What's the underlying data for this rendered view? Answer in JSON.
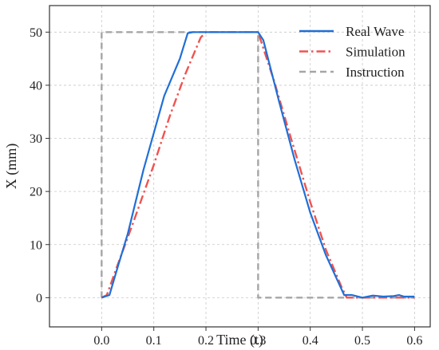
{
  "chart_data": {
    "type": "line",
    "title": "",
    "xlabel": "Time  (t)",
    "ylabel": "X  (mm)",
    "xlim": [
      -0.1,
      0.63
    ],
    "ylim": [
      -5.5,
      55
    ],
    "xticks": [
      0.0,
      0.1,
      0.2,
      0.3,
      0.4,
      0.5,
      0.6
    ],
    "xtick_labels": [
      "0.0",
      "0.1",
      "0.2",
      "0.3",
      "0.4",
      "0.5",
      "0.6"
    ],
    "yticks": [
      0,
      10,
      20,
      30,
      40,
      50
    ],
    "ytick_labels": [
      "0",
      "10",
      "20",
      "30",
      "40",
      "50"
    ],
    "grid": true,
    "legend_position": "top-right",
    "series": [
      {
        "name": "Real Wave",
        "color": "#1f6fd6",
        "style": "solid",
        "x": [
          0.0,
          0.015,
          0.03,
          0.05,
          0.08,
          0.1,
          0.12,
          0.15,
          0.165,
          0.175,
          0.2,
          0.25,
          0.3,
          0.31,
          0.34,
          0.37,
          0.4,
          0.43,
          0.465,
          0.48,
          0.5,
          0.52,
          0.54,
          0.56,
          0.57,
          0.58,
          0.6
        ],
        "y": [
          0.0,
          0.5,
          5.5,
          12.0,
          24.0,
          31.0,
          38.0,
          45.0,
          49.8,
          50.0,
          50.0,
          50.0,
          50.0,
          48.5,
          37.0,
          26.0,
          16.0,
          8.0,
          0.5,
          0.5,
          0.0,
          0.4,
          0.2,
          0.3,
          0.5,
          0.2,
          0.2
        ]
      },
      {
        "name": "Simulation",
        "color": "#ef5350",
        "style": "dashdot",
        "x": [
          0.0,
          0.01,
          0.03,
          0.06,
          0.1,
          0.13,
          0.16,
          0.19,
          0.2,
          0.25,
          0.3,
          0.33,
          0.36,
          0.4,
          0.43,
          0.46,
          0.47,
          0.5,
          0.6
        ],
        "y": [
          0.0,
          0.5,
          6.0,
          14.0,
          25.0,
          34.0,
          42.0,
          49.0,
          50.0,
          50.0,
          50.0,
          41.0,
          31.0,
          18.0,
          9.0,
          2.0,
          0.0,
          0.0,
          0.0
        ]
      },
      {
        "name": "Instruction",
        "color": "#a6a6a6",
        "style": "dashed",
        "x": [
          0.0,
          0.0,
          0.3,
          0.3,
          0.6
        ],
        "y": [
          0.0,
          50.0,
          50.0,
          0.0,
          0.0
        ]
      }
    ]
  }
}
